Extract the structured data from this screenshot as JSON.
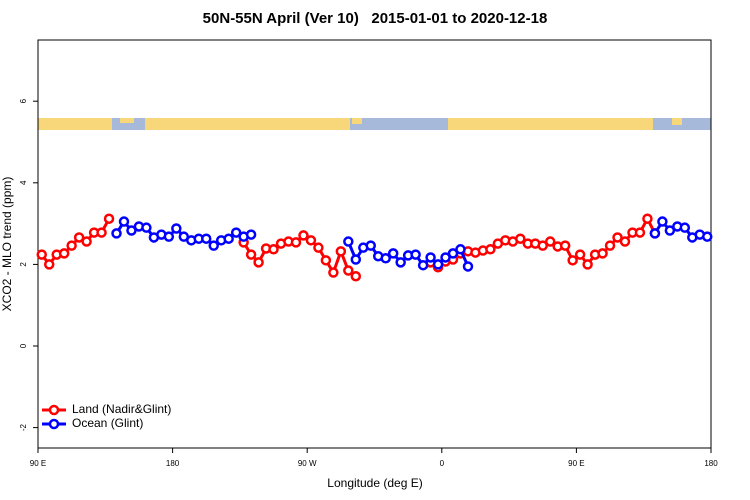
{
  "chart_data": {
    "type": "line",
    "title": "50N-55N April (Ver 10)   2015-01-01 to 2020-12-18",
    "x_label": "Longitude (deg E)",
    "y_label": "XCO2 - MLO trend (ppm)",
    "xlim": [
      90,
      540
    ],
    "xticks": [
      {
        "value": 90,
        "label": "90 E"
      },
      180,
      {
        "value": 270,
        "label": "90 W"
      },
      {
        "value": 360,
        "label": "0"
      },
      {
        "value": 450,
        "label": "90 E"
      },
      {
        "value": 540,
        "label": "180"
      }
    ],
    "ylim": [
      -2.5,
      7.5
    ],
    "yticks": [
      -2,
      0,
      2,
      4,
      6
    ],
    "legend": "bottom-left",
    "series": [
      {
        "name": "Land (Nadir&Glint)",
        "color": "#ff0000",
        "x": [
          92.5,
          97.5,
          102.5,
          107.5,
          112.5,
          117.5,
          122.5,
          127.5,
          132.5,
          137.5,
          142.5,
          227.5,
          232.5,
          237.5,
          242.5,
          247.5,
          252.5,
          257.5,
          262.5,
          267.5,
          272.5,
          277.5,
          282.5,
          287.5,
          292.5,
          297.5,
          302.5,
          307.5,
          352.5,
          357.5,
          362.5,
          367.5,
          372.5,
          377.5,
          382.5,
          387.5,
          392.5,
          397.5,
          402.5,
          407.5,
          412.5,
          417.5,
          422.5,
          427.5,
          432.5,
          437.5,
          442.5,
          447.5,
          452.5,
          457.5,
          462.5,
          467.5,
          472.5,
          477.5,
          482.5,
          487.5,
          492.5,
          497.5,
          502.5
        ],
        "values": [
          2.24,
          2.0,
          2.24,
          2.27,
          2.46,
          2.66,
          2.56,
          2.78,
          2.78,
          3.12,
          null,
          2.54,
          2.24,
          2.05,
          2.39,
          2.37,
          2.51,
          2.56,
          2.54,
          2.71,
          2.59,
          2.41,
          2.1,
          1.8,
          2.32,
          1.85,
          1.71,
          null,
          2.05,
          1.93,
          2.07,
          2.12,
          2.27,
          2.32,
          2.29,
          2.34,
          2.37,
          2.51,
          2.59,
          2.56,
          2.63,
          2.51,
          2.51,
          2.46,
          2.56,
          2.44,
          2.46,
          2.1,
          2.24,
          2.0,
          2.24,
          2.27,
          2.46,
          2.66,
          2.56,
          2.78,
          2.78,
          3.12,
          2.76
        ]
      },
      {
        "name": "Ocean (Glint)",
        "color": "#0000ff",
        "x": [
          142.5,
          147.5,
          152.5,
          157.5,
          162.5,
          167.5,
          172.5,
          177.5,
          182.5,
          187.5,
          192.5,
          197.5,
          202.5,
          207.5,
          212.5,
          217.5,
          222.5,
          227.5,
          232.5,
          237.5,
          297.5,
          302.5,
          307.5,
          312.5,
          317.5,
          322.5,
          327.5,
          332.5,
          337.5,
          342.5,
          347.5,
          352.5,
          357.5,
          362.5,
          367.5,
          372.5,
          377.5,
          382.5,
          502.5,
          507.5,
          512.5,
          517.5,
          522.5,
          527.5,
          532.5,
          537.5
        ],
        "values": [
          2.76,
          3.05,
          2.83,
          2.93,
          2.9,
          2.66,
          2.73,
          2.68,
          2.88,
          2.68,
          2.59,
          2.63,
          2.63,
          2.46,
          2.59,
          2.63,
          2.78,
          2.68,
          2.73,
          null,
          2.56,
          2.12,
          2.41,
          2.46,
          2.2,
          2.15,
          2.27,
          2.05,
          2.22,
          2.24,
          1.98,
          2.17,
          2.0,
          2.17,
          2.27,
          2.37,
          1.95,
          null,
          2.76,
          3.05,
          2.83,
          2.93,
          2.9,
          2.66,
          2.73,
          2.68
        ]
      }
    ]
  }
}
